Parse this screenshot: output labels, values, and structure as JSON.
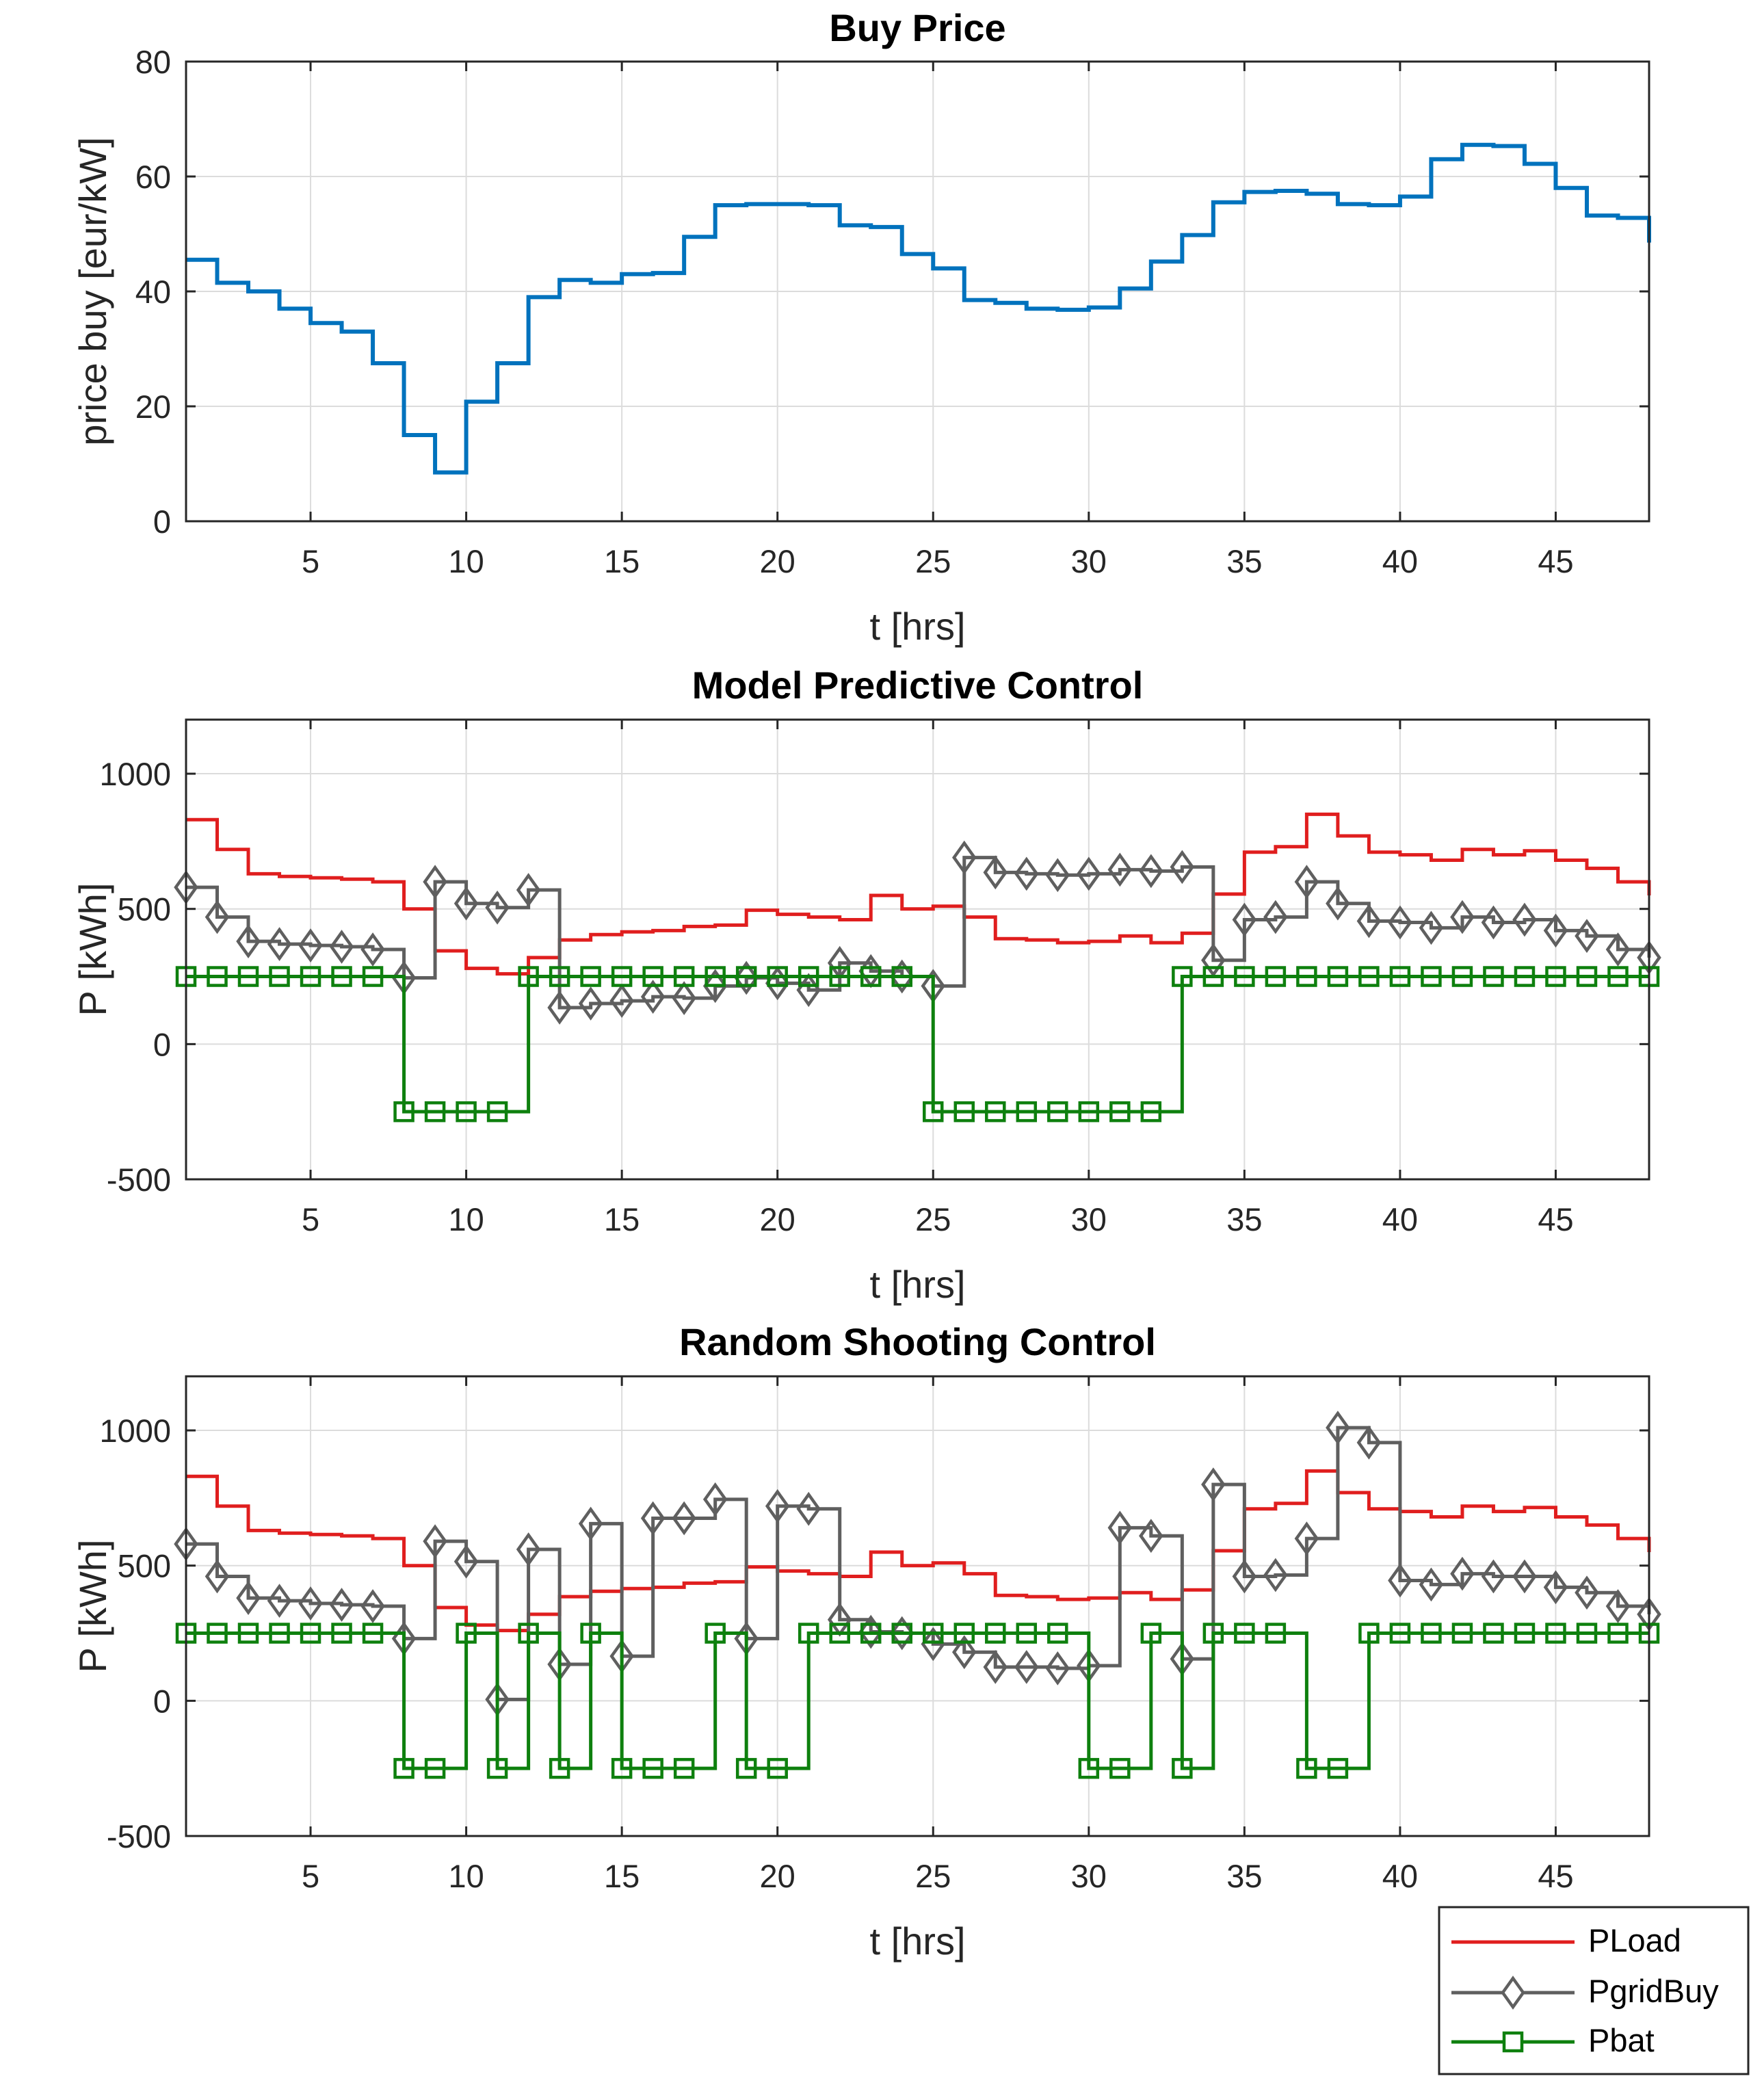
{
  "chart_data": [
    {
      "type": "line",
      "step": true,
      "title": "Buy Price",
      "xlabel": "t [hrs]",
      "ylabel": "price buy [eur/kW]",
      "xlim": [
        1,
        48
      ],
      "ylim": [
        0,
        80
      ],
      "xticks": [
        5,
        10,
        15,
        20,
        25,
        30,
        35,
        40,
        45
      ],
      "yticks": [
        0,
        20,
        40,
        60,
        80
      ],
      "grid": true,
      "series": [
        {
          "name": "price buy",
          "color": "#0072BD",
          "marker": "none",
          "values": [
            45.5,
            41.5,
            40,
            37,
            34.5,
            33,
            27.5,
            15,
            8.5,
            20.8,
            27.5,
            39,
            42,
            41.5,
            43,
            43.2,
            49.5,
            55,
            55.2,
            55.2,
            55,
            51.5,
            51.2,
            46.5,
            44,
            38.5,
            38,
            37,
            36.8,
            37.2,
            40.5,
            45.2,
            49.8,
            55.5,
            57.3,
            57.5,
            57,
            55.2,
            55,
            56.5,
            63,
            65.5,
            65.3,
            62.2,
            58,
            53.2,
            52.8,
            48.5
          ]
        }
      ]
    },
    {
      "type": "line",
      "step": true,
      "title": "Model Predictive Control",
      "xlabel": "t [hrs]",
      "ylabel": "P [kWh]",
      "xlim": [
        1,
        48
      ],
      "ylim": [
        -500,
        1200
      ],
      "xticks": [
        5,
        10,
        15,
        20,
        25,
        30,
        35,
        40,
        45
      ],
      "yticks": [
        -500,
        0,
        500,
        1000
      ],
      "grid": true,
      "series": [
        {
          "name": "PLoad",
          "color": "#E01E1E",
          "marker": "none",
          "values": [
            830,
            720,
            630,
            620,
            615,
            610,
            600,
            500,
            345,
            280,
            260,
            320,
            385,
            405,
            415,
            420,
            435,
            440,
            495,
            480,
            470,
            460,
            550,
            500,
            510,
            470,
            390,
            385,
            375,
            380,
            400,
            375,
            410,
            555,
            710,
            730,
            850,
            770,
            710,
            700,
            680,
            720,
            700,
            715,
            680,
            650,
            600,
            550
          ]
        },
        {
          "name": "PgridBuy",
          "color": "#5F5F5F",
          "marker": "diamond",
          "values": [
            580,
            470,
            380,
            370,
            365,
            360,
            350,
            245,
            600,
            520,
            505,
            570,
            135,
            150,
            160,
            175,
            170,
            215,
            245,
            225,
            200,
            300,
            270,
            250,
            215,
            690,
            635,
            630,
            625,
            630,
            645,
            640,
            655,
            310,
            460,
            470,
            600,
            520,
            455,
            450,
            430,
            470,
            450,
            460,
            420,
            400,
            350,
            320
          ]
        },
        {
          "name": "Pbat",
          "color": "#0E800E",
          "marker": "square",
          "values": [
            250,
            250,
            250,
            250,
            250,
            250,
            250,
            -250,
            -250,
            -250,
            -250,
            250,
            250,
            250,
            250,
            250,
            250,
            250,
            250,
            250,
            250,
            250,
            250,
            250,
            -250,
            -250,
            -250,
            -250,
            -250,
            -250,
            -250,
            -250,
            250,
            250,
            250,
            250,
            250,
            250,
            250,
            250,
            250,
            250,
            250,
            250,
            250,
            250,
            250,
            250
          ]
        }
      ]
    },
    {
      "type": "line",
      "step": true,
      "title": "Random Shooting Control",
      "xlabel": "t [hrs]",
      "ylabel": "P [kWh]",
      "xlim": [
        1,
        48
      ],
      "ylim": [
        -500,
        1200
      ],
      "xticks": [
        5,
        10,
        15,
        20,
        25,
        30,
        35,
        40,
        45
      ],
      "yticks": [
        -500,
        0,
        500,
        1000
      ],
      "grid": true,
      "series": [
        {
          "name": "PLoad",
          "color": "#E01E1E",
          "marker": "none",
          "values": [
            830,
            720,
            630,
            620,
            615,
            610,
            600,
            500,
            345,
            280,
            260,
            320,
            385,
            405,
            415,
            420,
            435,
            440,
            495,
            480,
            470,
            460,
            550,
            500,
            510,
            470,
            390,
            385,
            375,
            380,
            400,
            375,
            410,
            555,
            710,
            730,
            850,
            770,
            710,
            700,
            680,
            720,
            700,
            715,
            680,
            650,
            600,
            550
          ]
        },
        {
          "name": "PgridBuy",
          "color": "#5F5F5F",
          "marker": "diamond",
          "values": [
            580,
            460,
            380,
            370,
            360,
            355,
            350,
            230,
            590,
            515,
            5,
            560,
            135,
            655,
            165,
            675,
            675,
            745,
            230,
            720,
            710,
            300,
            255,
            250,
            210,
            180,
            125,
            125,
            120,
            130,
            640,
            610,
            155,
            800,
            460,
            465,
            600,
            1010,
            955,
            445,
            430,
            470,
            460,
            460,
            420,
            400,
            350,
            320
          ]
        },
        {
          "name": "Pbat",
          "color": "#0E800E",
          "marker": "square",
          "values": [
            250,
            250,
            250,
            250,
            250,
            250,
            250,
            -250,
            -250,
            250,
            -250,
            250,
            -250,
            250,
            -250,
            -250,
            -250,
            250,
            -250,
            -250,
            250,
            250,
            250,
            250,
            250,
            250,
            250,
            250,
            250,
            -250,
            -250,
            250,
            -250,
            250,
            250,
            250,
            -250,
            -250,
            250,
            250,
            250,
            250,
            250,
            250,
            250,
            250,
            250,
            250
          ]
        }
      ]
    }
  ],
  "legend": {
    "entries": [
      {
        "label": "PLoad",
        "color": "#E01E1E",
        "marker": "none"
      },
      {
        "label": "PgridBuy",
        "color": "#5F5F5F",
        "marker": "diamond"
      },
      {
        "label": "Pbat",
        "color": "#0E800E",
        "marker": "square"
      }
    ]
  }
}
